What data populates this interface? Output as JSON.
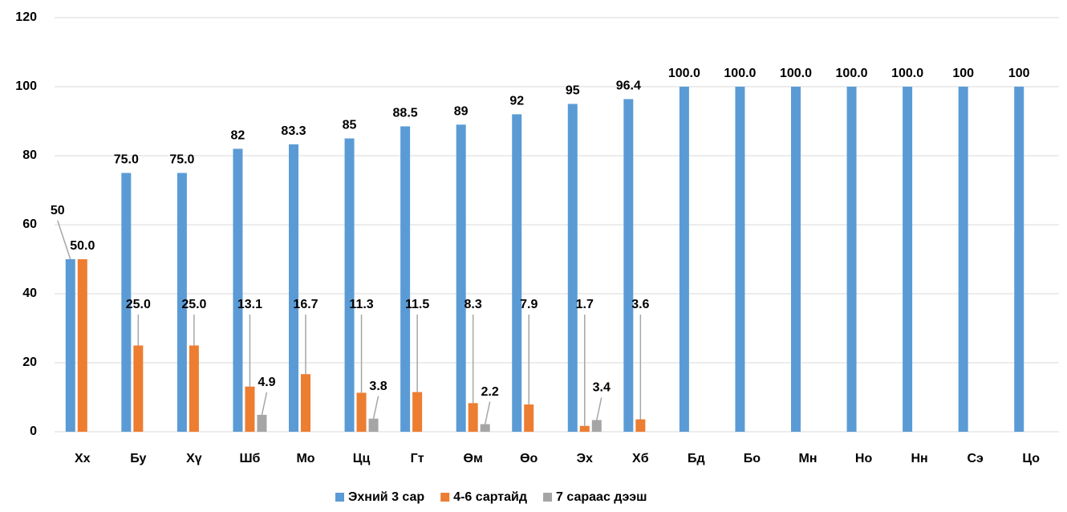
{
  "chart_data": {
    "type": "bar",
    "categories": [
      "Хх",
      "Бу",
      "Хү",
      "Шб",
      "Мо",
      "Цц",
      "Гт",
      "Өм",
      "Өо",
      "Эх",
      "Хб",
      "Бд",
      "Бо",
      "Мн",
      "Но",
      "Нн",
      "Сэ",
      "Цо"
    ],
    "series": [
      {
        "name": "Эхний 3 сар",
        "color": "#5b9bd5",
        "values": [
          50,
          75,
          75,
          82,
          83.3,
          85,
          88.5,
          89,
          92,
          95,
          96.4,
          100,
          100,
          100,
          100,
          100,
          100,
          100
        ],
        "value_labels": [
          "50",
          "75.0",
          "75.0",
          "82",
          "83.3",
          "85",
          "88.5",
          "89",
          "92",
          "95",
          "96.4",
          "100.0",
          "100.0",
          "100.0",
          "100.0",
          "100.0",
          "100",
          "100"
        ]
      },
      {
        "name": "4-6 сартайд",
        "color": "#ed7d31",
        "values": [
          50,
          25,
          25,
          13.1,
          16.7,
          11.3,
          11.5,
          8.3,
          7.9,
          1.7,
          3.6,
          null,
          null,
          null,
          null,
          null,
          null,
          null
        ],
        "value_labels": [
          "50.0",
          "25.0",
          "25.0",
          "13.1",
          "16.7",
          "11.3",
          "11.5",
          "8.3",
          "7.9",
          "1.7",
          "3.6",
          null,
          null,
          null,
          null,
          null,
          null,
          null
        ]
      },
      {
        "name": "7 сараас дээш",
        "color": "#a5a5a5",
        "values": [
          null,
          null,
          null,
          4.9,
          null,
          3.8,
          null,
          2.2,
          null,
          3.4,
          null,
          null,
          null,
          null,
          null,
          null,
          null,
          null
        ],
        "value_labels": [
          null,
          null,
          null,
          "4.9",
          null,
          "3.8",
          null,
          "2.2",
          null,
          "3.4",
          null,
          null,
          null,
          null,
          null,
          null,
          null,
          null
        ]
      }
    ],
    "ylim": [
      0,
      120
    ],
    "yticks": [
      0,
      20,
      40,
      60,
      80,
      100,
      120
    ],
    "grid": true,
    "legend": "bottom"
  }
}
